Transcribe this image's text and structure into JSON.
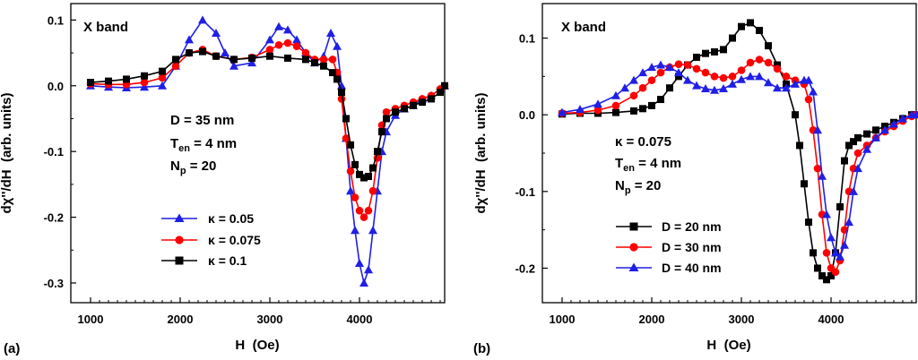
{
  "panels": [
    {
      "label": "(a)",
      "in_plot_title": "X band",
      "params": [
        "D = 35 nm",
        "T_en = 4 nm",
        "N_p = 20"
      ],
      "params_display": [
        {
          "main": "D = 35 nm",
          "sub": "",
          "rest": ""
        },
        {
          "main": "T",
          "sub": "en",
          "rest": " = 4 nm"
        },
        {
          "main": "N",
          "sub": "p",
          "rest": " = 20"
        }
      ],
      "legend": [
        "κ = 0.05",
        "κ = 0.075",
        "κ = 0.1"
      ]
    },
    {
      "label": "(b)",
      "in_plot_title": "X band",
      "params": [
        "κ = 0.075",
        "T_en = 4 nm",
        "N_p = 20"
      ],
      "params_display": [
        {
          "main": "κ = 0.075",
          "sub": "",
          "rest": ""
        },
        {
          "main": "T",
          "sub": "en",
          "rest": " = 4 nm"
        },
        {
          "main": "N",
          "sub": "p",
          "rest": " = 20"
        }
      ],
      "legend": [
        "D = 20 nm",
        "D = 30 nm",
        "D = 40 nm"
      ]
    }
  ],
  "series_colors": [
    "#1f1fe6",
    "#ff0000",
    "#000000"
  ],
  "chart_data": [
    {
      "type": "line",
      "title": "(a)",
      "xlabel": "H  (Oe)",
      "ylabel": "dχ''/dH  (arb. units)",
      "xlim": [
        780,
        4950
      ],
      "ylim": [
        -0.33,
        0.125
      ],
      "xticks": [
        1000,
        2000,
        3000,
        4000
      ],
      "yticks": [
        0.1,
        0.0,
        -0.1,
        -0.2,
        -0.3
      ],
      "ytick_labels": [
        "0.1",
        "0.0",
        "-0.1",
        "-0.2",
        "-0.3"
      ],
      "series": [
        {
          "name": "κ = 0.05",
          "color": "#1f1fe6",
          "marker": "triangle",
          "x": [
            1000,
            1200,
            1400,
            1600,
            1800,
            1950,
            2100,
            2250,
            2400,
            2500,
            2600,
            2800,
            3000,
            3100,
            3200,
            3300,
            3400,
            3500,
            3600,
            3680,
            3750,
            3800,
            3850,
            3900,
            3950,
            4000,
            4050,
            4100,
            4150,
            4200,
            4250,
            4300,
            4400,
            4500,
            4600,
            4700,
            4800,
            4900,
            4950
          ],
          "y": [
            0.0,
            -0.002,
            -0.003,
            -0.002,
            0.0,
            0.03,
            0.07,
            0.1,
            0.08,
            0.05,
            0.03,
            0.035,
            0.07,
            0.09,
            0.085,
            0.07,
            0.05,
            0.035,
            0.045,
            0.08,
            0.06,
            0.0,
            -0.08,
            -0.16,
            -0.22,
            -0.27,
            -0.3,
            -0.28,
            -0.22,
            -0.16,
            -0.1,
            -0.07,
            -0.045,
            -0.035,
            -0.03,
            -0.02,
            -0.015,
            -0.005,
            0.0
          ]
        },
        {
          "name": "κ = 0.075",
          "color": "#ff0000",
          "marker": "circle",
          "x": [
            1000,
            1200,
            1400,
            1600,
            1800,
            1950,
            2100,
            2250,
            2400,
            2600,
            2800,
            3000,
            3100,
            3200,
            3300,
            3400,
            3500,
            3600,
            3700,
            3750,
            3800,
            3850,
            3900,
            3950,
            4000,
            4050,
            4100,
            4150,
            4200,
            4250,
            4300,
            4400,
            4500,
            4600,
            4700,
            4800,
            4900,
            4950
          ],
          "y": [
            0.003,
            0.002,
            0.002,
            0.005,
            0.012,
            0.03,
            0.05,
            0.055,
            0.045,
            0.04,
            0.043,
            0.055,
            0.062,
            0.065,
            0.06,
            0.05,
            0.04,
            0.04,
            0.04,
            0.02,
            -0.02,
            -0.08,
            -0.13,
            -0.17,
            -0.19,
            -0.2,
            -0.19,
            -0.16,
            -0.11,
            -0.06,
            -0.04,
            -0.035,
            -0.03,
            -0.025,
            -0.02,
            -0.015,
            -0.005,
            0.0
          ]
        },
        {
          "name": "κ = 0.1",
          "color": "#000000",
          "marker": "square",
          "x": [
            1000,
            1200,
            1400,
            1600,
            1800,
            1950,
            2100,
            2250,
            2400,
            2600,
            2800,
            3000,
            3200,
            3400,
            3500,
            3600,
            3700,
            3750,
            3800,
            3850,
            3900,
            3950,
            4000,
            4050,
            4100,
            4150,
            4200,
            4250,
            4300,
            4400,
            4500,
            4600,
            4700,
            4800,
            4900,
            4950
          ],
          "y": [
            0.005,
            0.007,
            0.01,
            0.015,
            0.022,
            0.04,
            0.05,
            0.052,
            0.045,
            0.04,
            0.042,
            0.045,
            0.042,
            0.04,
            0.035,
            0.03,
            0.02,
            0.01,
            -0.01,
            -0.05,
            -0.09,
            -0.12,
            -0.135,
            -0.14,
            -0.138,
            -0.125,
            -0.1,
            -0.07,
            -0.05,
            -0.04,
            -0.035,
            -0.03,
            -0.025,
            -0.02,
            -0.01,
            0.0
          ]
        }
      ]
    },
    {
      "type": "line",
      "title": "(b)",
      "xlabel": "H  (Oe)",
      "ylabel": "dχ''/dH  (arb. units)",
      "xlim": [
        780,
        4950
      ],
      "ylim": [
        -0.245,
        0.145
      ],
      "xticks": [
        1000,
        2000,
        3000,
        4000
      ],
      "yticks": [
        0.1,
        0.0,
        -0.1,
        -0.2
      ],
      "ytick_labels": [
        "0.1",
        "0.0",
        "-0.1",
        "-0.2"
      ],
      "series": [
        {
          "name": "D = 20 nm",
          "color": "#000000",
          "marker": "square",
          "x": [
            1000,
            1200,
            1400,
            1600,
            1800,
            1900,
            2000,
            2100,
            2200,
            2300,
            2400,
            2500,
            2600,
            2700,
            2800,
            2900,
            3000,
            3100,
            3200,
            3300,
            3400,
            3500,
            3600,
            3650,
            3700,
            3750,
            3800,
            3850,
            3900,
            3950,
            4000,
            4050,
            4100,
            4150,
            4200,
            4250,
            4300,
            4400,
            4500,
            4600,
            4700,
            4800,
            4900,
            4950
          ],
          "y": [
            0.001,
            0.002,
            0.002,
            0.003,
            0.005,
            0.008,
            0.012,
            0.02,
            0.035,
            0.05,
            0.065,
            0.075,
            0.08,
            0.082,
            0.085,
            0.1,
            0.115,
            0.12,
            0.11,
            0.09,
            0.065,
            0.04,
            0.0,
            -0.04,
            -0.09,
            -0.14,
            -0.18,
            -0.2,
            -0.21,
            -0.215,
            -0.21,
            -0.18,
            -0.12,
            -0.06,
            -0.04,
            -0.035,
            -0.03,
            -0.025,
            -0.02,
            -0.015,
            -0.01,
            -0.005,
            0.0,
            0.0
          ]
        },
        {
          "name": "D = 30 nm",
          "color": "#ff0000",
          "marker": "circle",
          "x": [
            1000,
            1200,
            1400,
            1600,
            1800,
            1900,
            2000,
            2100,
            2200,
            2300,
            2400,
            2500,
            2600,
            2700,
            2800,
            2900,
            3000,
            3100,
            3200,
            3300,
            3400,
            3500,
            3600,
            3700,
            3750,
            3800,
            3850,
            3900,
            3950,
            4000,
            4050,
            4100,
            4150,
            4200,
            4250,
            4300,
            4400,
            4500,
            4600,
            4700,
            4800,
            4900,
            4950
          ],
          "y": [
            0.002,
            0.003,
            0.006,
            0.012,
            0.025,
            0.035,
            0.045,
            0.055,
            0.062,
            0.066,
            0.065,
            0.06,
            0.055,
            0.05,
            0.048,
            0.05,
            0.058,
            0.068,
            0.072,
            0.068,
            0.06,
            0.05,
            0.045,
            0.04,
            0.02,
            -0.02,
            -0.07,
            -0.13,
            -0.18,
            -0.2,
            -0.205,
            -0.19,
            -0.15,
            -0.1,
            -0.07,
            -0.05,
            -0.04,
            -0.03,
            -0.022,
            -0.015,
            -0.008,
            -0.002,
            0.0
          ]
        },
        {
          "name": "D = 40 nm",
          "color": "#1f1fe6",
          "marker": "triangle",
          "x": [
            1000,
            1200,
            1400,
            1600,
            1700,
            1800,
            1900,
            2000,
            2100,
            2200,
            2300,
            2400,
            2500,
            2600,
            2700,
            2800,
            2900,
            3000,
            3100,
            3200,
            3300,
            3400,
            3500,
            3600,
            3700,
            3750,
            3800,
            3850,
            3900,
            3950,
            4000,
            4050,
            4100,
            4150,
            4200,
            4250,
            4300,
            4400,
            4500,
            4600,
            4700,
            4800,
            4900,
            4950
          ],
          "y": [
            0.003,
            0.007,
            0.014,
            0.025,
            0.035,
            0.045,
            0.055,
            0.062,
            0.065,
            0.062,
            0.055,
            0.045,
            0.038,
            0.034,
            0.032,
            0.034,
            0.04,
            0.046,
            0.05,
            0.05,
            0.042,
            0.035,
            0.035,
            0.04,
            0.045,
            0.045,
            0.03,
            -0.02,
            -0.08,
            -0.13,
            -0.16,
            -0.18,
            -0.185,
            -0.17,
            -0.14,
            -0.1,
            -0.07,
            -0.045,
            -0.03,
            -0.02,
            -0.012,
            -0.005,
            0.0,
            0.0
          ]
        }
      ]
    }
  ]
}
